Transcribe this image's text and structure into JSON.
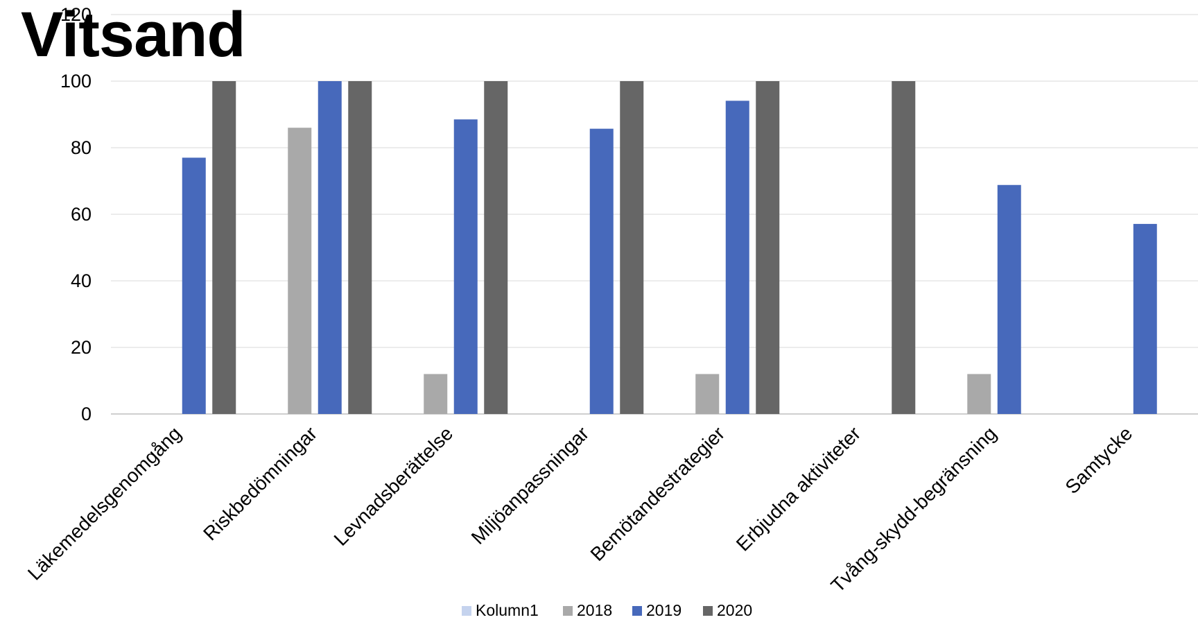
{
  "chart_data": {
    "type": "bar",
    "title": "Vitsand",
    "xlabel": "",
    "ylabel": "",
    "ylim": [
      0,
      120
    ],
    "yticks": [
      0,
      20,
      40,
      60,
      80,
      100,
      120
    ],
    "grid": true,
    "legend_position": "bottom",
    "categories": [
      "Läkemedelsgenomgång",
      "Riskbedömningar",
      "Levnadsberättelse",
      "Miljöanpassningar",
      "Bemötandestrategier",
      "Erbjudna aktiviteter",
      "Tvång-skydd-begränsning",
      "Samtycke"
    ],
    "series": [
      {
        "name": "Kolumn1",
        "color": "#c5d3ee",
        "values": [
          0,
          0,
          0,
          0,
          0,
          0,
          0,
          0
        ]
      },
      {
        "name": "2018",
        "color": "#a9a9a9",
        "values": [
          0,
          86,
          12,
          0,
          12,
          0,
          12,
          0
        ]
      },
      {
        "name": "2019",
        "color": "#4769bb",
        "values": [
          77,
          100,
          88.5,
          85.7,
          94.1,
          0,
          68.8,
          57.1
        ]
      },
      {
        "name": "2020",
        "color": "#666666",
        "values": [
          100,
          100,
          100,
          100,
          100,
          100,
          0,
          0
        ]
      }
    ]
  }
}
